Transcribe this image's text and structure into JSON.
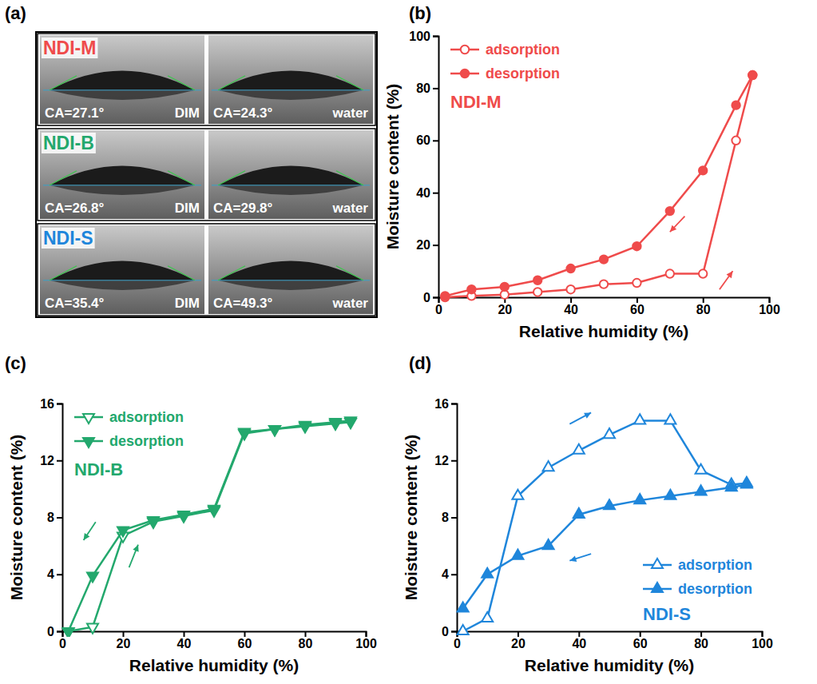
{
  "panel_a": {
    "label": "(a)",
    "rows": [
      {
        "sample": "NDI-M",
        "color": "#ef4b4b",
        "images": [
          {
            "ca": "CA=27.1°",
            "liquid": "DIM"
          },
          {
            "ca": "CA=24.3°",
            "liquid": "water"
          }
        ]
      },
      {
        "sample": "NDI-B",
        "color": "#23a86d",
        "images": [
          {
            "ca": "CA=26.8°",
            "liquid": "DIM"
          },
          {
            "ca": "CA=29.8°",
            "liquid": "water"
          }
        ]
      },
      {
        "sample": "NDI-S",
        "color": "#1f86db",
        "images": [
          {
            "ca": "CA=35.4°",
            "liquid": "DIM"
          },
          {
            "ca": "CA=49.3°",
            "liquid": "water"
          }
        ]
      }
    ]
  },
  "chart_data": [
    {
      "type": "line",
      "panel": "(b)",
      "annotation": "NDI-M",
      "x_label": "Relative humidity (%)",
      "y_label": "Moisture content (%)",
      "xlim": [
        0,
        100
      ],
      "xticks": [
        0,
        20,
        40,
        60,
        80,
        100
      ],
      "ylim": [
        0,
        100
      ],
      "yticks": [
        0,
        20,
        40,
        60,
        80,
        100
      ],
      "legend": "upper left",
      "x": [
        2,
        10,
        20,
        30,
        40,
        50,
        60,
        70,
        80,
        90,
        95
      ],
      "series": [
        {
          "name": "adsorption",
          "color": "#ef4b4b",
          "marker": "circle-open",
          "values": [
            0,
            0.5,
            1,
            2,
            3,
            5,
            5.5,
            9,
            9,
            60,
            85
          ]
        },
        {
          "name": "desorption",
          "color": "#ef4b4b",
          "marker": "circle",
          "values": [
            0.5,
            3,
            4,
            6.5,
            11,
            14.5,
            19.5,
            33,
            48.5,
            73.5,
            85
          ]
        }
      ]
    },
    {
      "type": "line",
      "panel": "(c)",
      "annotation": "NDI-B",
      "x_label": "Relative humidity (%)",
      "y_label": "Moisture content (%)",
      "xlim": [
        0,
        100
      ],
      "xticks": [
        0,
        20,
        40,
        60,
        80,
        100
      ],
      "ylim": [
        0,
        16
      ],
      "yticks": [
        0,
        4,
        8,
        12,
        16
      ],
      "legend": "upper left",
      "x": [
        2,
        10,
        20,
        30,
        40,
        50,
        60,
        70,
        80,
        90,
        95
      ],
      "series": [
        {
          "name": "adsorption",
          "color": "#23a86d",
          "marker": "triangle-down-open",
          "values": [
            0,
            0.3,
            6.7,
            7.7,
            8.1,
            8.5,
            13.9,
            14.2,
            14.4,
            14.6,
            14.7
          ]
        },
        {
          "name": "desorption",
          "color": "#23a86d",
          "marker": "triangle-down",
          "values": [
            0,
            3.9,
            7.1,
            7.8,
            8.2,
            8.6,
            14.0,
            14.2,
            14.5,
            14.7,
            14.8
          ]
        }
      ]
    },
    {
      "type": "line",
      "panel": "(d)",
      "annotation": "NDI-S",
      "x_label": "Relative humidity (%)",
      "y_label": "Moisture content (%)",
      "xlim": [
        0,
        100
      ],
      "xticks": [
        0,
        20,
        40,
        60,
        80,
        100
      ],
      "ylim": [
        0,
        16
      ],
      "yticks": [
        0,
        4,
        8,
        12,
        16
      ],
      "legend": "lower right",
      "x": [
        2,
        10,
        20,
        30,
        40,
        50,
        60,
        70,
        80,
        90,
        95
      ],
      "series": [
        {
          "name": "adsorption",
          "color": "#1f86db",
          "marker": "triangle-up-open",
          "values": [
            0,
            0.9,
            9.5,
            11.5,
            12.7,
            13.8,
            14.8,
            14.8,
            11.3,
            10.3,
            10.4
          ]
        },
        {
          "name": "desorption",
          "color": "#1f86db",
          "marker": "triangle-up",
          "values": [
            1.6,
            4.0,
            5.3,
            6.0,
            8.2,
            8.8,
            9.2,
            9.5,
            9.8,
            10.1,
            10.3
          ]
        }
      ]
    }
  ]
}
